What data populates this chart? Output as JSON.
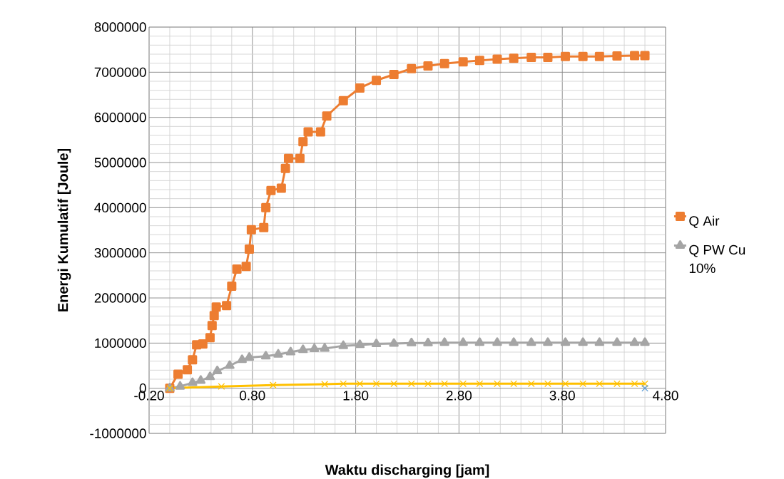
{
  "chart_data": {
    "type": "line",
    "xlabel": "Waktu discharging [jam]",
    "ylabel": "Energi Kumulatif  [Joule]",
    "xlim": [
      -0.2,
      4.8
    ],
    "ylim": [
      -1000000,
      8000000
    ],
    "xticks": [
      {
        "value": -0.2,
        "label": "-0.20"
      },
      {
        "value": 0.8,
        "label": "0.80"
      },
      {
        "value": 1.8,
        "label": "1.80"
      },
      {
        "value": 2.8,
        "label": "2.80"
      },
      {
        "value": 3.8,
        "label": "3.80"
      },
      {
        "value": 4.8,
        "label": "4.80"
      }
    ],
    "yticks": [
      -1000000,
      0,
      1000000,
      2000000,
      3000000,
      4000000,
      5000000,
      6000000,
      7000000,
      8000000
    ],
    "grid": true,
    "legend": "right",
    "series": [
      {
        "name": "Q Air",
        "color": "#ed7d31",
        "marker": "square",
        "x": [
          0,
          0.08,
          0.17,
          0.22,
          0.26,
          0.32,
          0.39,
          0.41,
          0.43,
          0.45,
          0.55,
          0.6,
          0.65,
          0.74,
          0.77,
          0.79,
          0.91,
          0.93,
          0.98,
          1.08,
          1.12,
          1.15,
          1.26,
          1.29,
          1.34,
          1.46,
          1.52,
          1.68,
          1.84,
          2.0,
          2.17,
          2.34,
          2.5,
          2.66,
          2.84,
          3.0,
          3.17,
          3.33,
          3.5,
          3.66,
          3.83,
          4.0,
          4.16,
          4.33,
          4.5,
          4.6
        ],
        "values": [
          0,
          310000,
          410000,
          630000,
          960000,
          980000,
          1120000,
          1390000,
          1610000,
          1800000,
          1830000,
          2260000,
          2640000,
          2700000,
          3080000,
          3510000,
          3560000,
          4000000,
          4380000,
          4430000,
          4870000,
          5090000,
          5090000,
          5460000,
          5680000,
          5680000,
          6030000,
          6370000,
          6650000,
          6820000,
          6950000,
          7080000,
          7140000,
          7190000,
          7230000,
          7260000,
          7290000,
          7310000,
          7330000,
          7330000,
          7350000,
          7350000,
          7350000,
          7360000,
          7370000,
          7370000
        ]
      },
      {
        "name": "Q PW Cu 10%",
        "color": "#a5a5a5",
        "marker": "triangle",
        "x": [
          0,
          0.1,
          0.22,
          0.3,
          0.39,
          0.46,
          0.58,
          0.7,
          0.77,
          0.93,
          1.05,
          1.17,
          1.29,
          1.4,
          1.5,
          1.68,
          1.84,
          2.0,
          2.17,
          2.34,
          2.5,
          2.66,
          2.84,
          3.0,
          3.17,
          3.33,
          3.5,
          3.66,
          3.83,
          4.0,
          4.16,
          4.33,
          4.5,
          4.6
        ],
        "values": [
          0,
          40000,
          120000,
          170000,
          250000,
          380000,
          500000,
          630000,
          680000,
          710000,
          750000,
          800000,
          850000,
          870000,
          880000,
          940000,
          960000,
          980000,
          990000,
          1000000,
          1000000,
          1010000,
          1010000,
          1010000,
          1010000,
          1010000,
          1010000,
          1010000,
          1010000,
          1010000,
          1010000,
          1010000,
          1010000,
          1010000
        ]
      },
      {
        "color": "#ffc000",
        "marker": "cross",
        "x": [
          0,
          0.5,
          1.0,
          1.5,
          1.68,
          1.84,
          2.0,
          2.17,
          2.34,
          2.5,
          2.66,
          2.84,
          3.0,
          3.17,
          3.33,
          3.5,
          3.66,
          3.83,
          4.0,
          4.16,
          4.33,
          4.5,
          4.6
        ],
        "values": [
          0,
          40000,
          70000,
          90000,
          100000,
          100000,
          100000,
          100000,
          100000,
          100000,
          100000,
          100000,
          100000,
          100000,
          100000,
          100000,
          100000,
          100000,
          100000,
          100000,
          100000,
          100000,
          100000
        ]
      },
      {
        "type": "scatter",
        "color": "#5b9bd5",
        "marker": "cross",
        "x": [
          4.6
        ],
        "values": [
          0
        ]
      }
    ]
  }
}
